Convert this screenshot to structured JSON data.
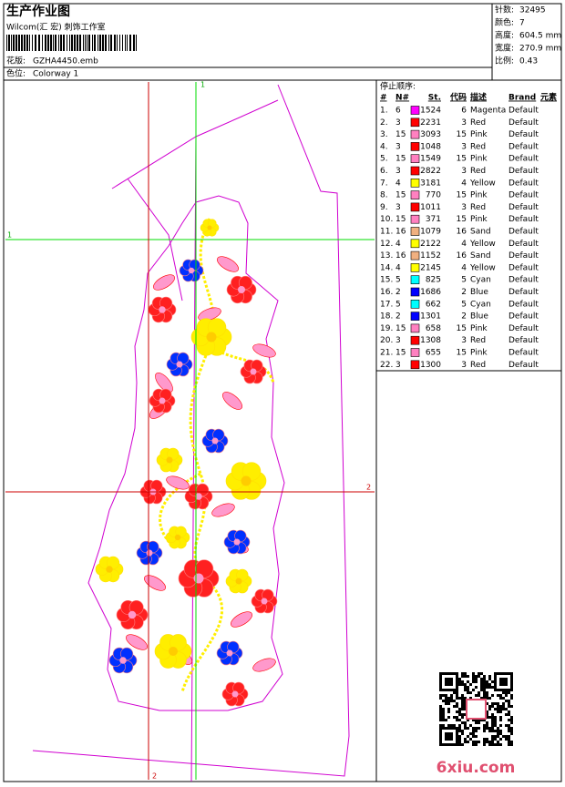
{
  "header": {
    "title": "生产作业图",
    "studio": "Wilcom(汇 宏) 刺饰工作室",
    "design_label": "花版:",
    "design": "GZHA4450.emb",
    "colorway_label": "色位:",
    "colorway": "Colorway 1"
  },
  "info": [
    {
      "label": "针数:",
      "value": "32495"
    },
    {
      "label": "颜色:",
      "value": "7"
    },
    {
      "label": "高度:",
      "value": "604.5 mm"
    },
    {
      "label": "宽度:",
      "value": "270.9 mm"
    },
    {
      "label": "比例:",
      "value": "0.43"
    }
  ],
  "guides": {
    "green": "1",
    "red": "2"
  },
  "table": {
    "title": "停止顺序:",
    "columns": [
      "#",
      "N#",
      "St.",
      "代码",
      "描述",
      "Brand",
      "元素"
    ],
    "rows": [
      [
        "1.",
        "6",
        "1524",
        "6",
        "Magenta",
        "Default"
      ],
      [
        "2.",
        "3",
        "2231",
        "3",
        "Red",
        "Default"
      ],
      [
        "3.",
        "15",
        "3093",
        "15",
        "Pink",
        "Default"
      ],
      [
        "4.",
        "3",
        "1048",
        "3",
        "Red",
        "Default"
      ],
      [
        "5.",
        "15",
        "1549",
        "15",
        "Pink",
        "Default"
      ],
      [
        "6.",
        "3",
        "2822",
        "3",
        "Red",
        "Default"
      ],
      [
        "7.",
        "4",
        "3181",
        "4",
        "Yellow",
        "Default"
      ],
      [
        "8.",
        "15",
        "770",
        "15",
        "Pink",
        "Default"
      ],
      [
        "9.",
        "3",
        "1011",
        "3",
        "Red",
        "Default"
      ],
      [
        "10.",
        "15",
        "371",
        "15",
        "Pink",
        "Default"
      ],
      [
        "11.",
        "16",
        "1079",
        "16",
        "Sand",
        "Default"
      ],
      [
        "12.",
        "4",
        "2122",
        "4",
        "Yellow",
        "Default"
      ],
      [
        "13.",
        "16",
        "1152",
        "16",
        "Sand",
        "Default"
      ],
      [
        "14.",
        "4",
        "2145",
        "4",
        "Yellow",
        "Default"
      ],
      [
        "15.",
        "5",
        "825",
        "5",
        "Cyan",
        "Default"
      ],
      [
        "16.",
        "2",
        "1686",
        "2",
        "Blue",
        "Default"
      ],
      [
        "17.",
        "5",
        "662",
        "5",
        "Cyan",
        "Default"
      ],
      [
        "18.",
        "2",
        "1301",
        "2",
        "Blue",
        "Default"
      ],
      [
        "19.",
        "15",
        "658",
        "15",
        "Pink",
        "Default"
      ],
      [
        "20.",
        "3",
        "1308",
        "3",
        "Red",
        "Default"
      ],
      [
        "21.",
        "15",
        "655",
        "15",
        "Pink",
        "Default"
      ],
      [
        "22.",
        "3",
        "1300",
        "3",
        "Red",
        "Default"
      ]
    ],
    "swatches": [
      "#ff00ff",
      "#ff0000",
      "#ff80c0",
      "#ff0000",
      "#ff80c0",
      "#ff0000",
      "#ffff00",
      "#ff80c0",
      "#ff0000",
      "#ff80c0",
      "#f0b080",
      "#ffff00",
      "#f0b080",
      "#ffff00",
      "#00ffff",
      "#0000ff",
      "#00ffff",
      "#0000ff",
      "#ff80c0",
      "#ff0000",
      "#ff80c0",
      "#ff0000"
    ]
  },
  "watermark": "6xiu.com"
}
